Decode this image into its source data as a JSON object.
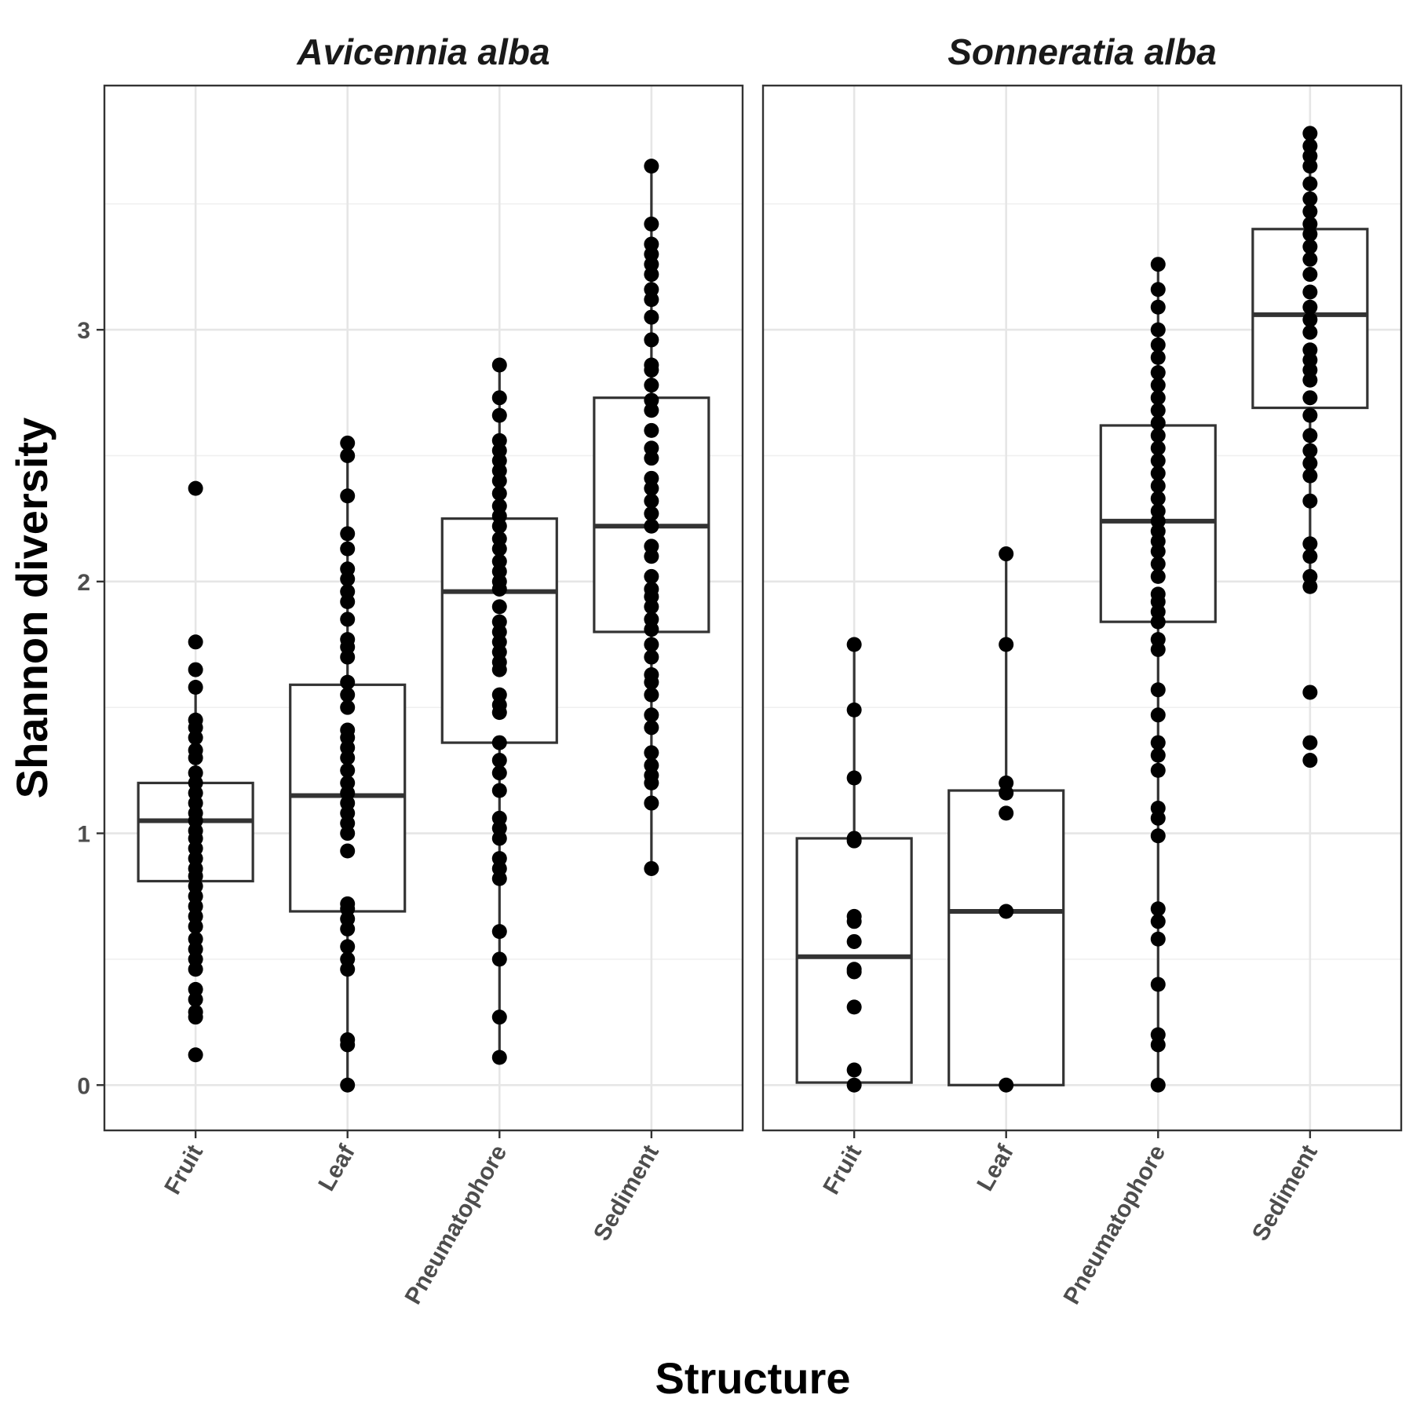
{
  "chart_data": {
    "type": "boxplot",
    "xlabel": "Structure",
    "ylabel": "Shannon diversity",
    "ylim": [
      -0.18,
      3.97
    ],
    "yticks": [
      0,
      1,
      2,
      3
    ],
    "grid": true,
    "theme": "bw",
    "colors": {
      "points": "#000000",
      "box": "#333333",
      "grid": "#e6e6e6"
    },
    "categories": [
      "Fruit",
      "Leaf",
      "Pneumatophore",
      "Sediment"
    ],
    "panels": [
      {
        "title": "Avicennia alba",
        "groups": [
          {
            "category": "Fruit",
            "box": {
              "q1": 0.81,
              "median": 1.05,
              "q3": 1.2,
              "lower": 0.46,
              "upper": 1.58
            },
            "points": [
              0.12,
              0.27,
              0.29,
              0.34,
              0.38,
              0.46,
              0.5,
              0.54,
              0.58,
              0.63,
              0.67,
              0.71,
              0.75,
              0.79,
              0.83,
              0.86,
              0.9,
              0.94,
              0.98,
              1.01,
              1.05,
              1.08,
              1.12,
              1.16,
              1.2,
              1.24,
              1.3,
              1.33,
              1.38,
              1.42,
              1.45,
              1.58,
              1.65,
              1.76,
              2.37
            ]
          },
          {
            "category": "Leaf",
            "box": {
              "q1": 0.69,
              "median": 1.15,
              "q3": 1.59,
              "lower": 0.0,
              "upper": 2.55
            },
            "points": [
              0.0,
              0.16,
              0.18,
              0.46,
              0.5,
              0.55,
              0.62,
              0.66,
              0.7,
              0.72,
              0.93,
              1.0,
              1.04,
              1.08,
              1.12,
              1.16,
              1.2,
              1.25,
              1.3,
              1.34,
              1.38,
              1.41,
              1.5,
              1.55,
              1.6,
              1.7,
              1.74,
              1.77,
              1.85,
              1.92,
              1.96,
              2.01,
              2.05,
              2.13,
              2.19,
              2.34,
              2.5,
              2.55
            ]
          },
          {
            "category": "Pneumatophore",
            "box": {
              "q1": 1.36,
              "median": 1.96,
              "q3": 2.25,
              "lower": 0.11,
              "upper": 2.86
            },
            "points": [
              0.11,
              0.27,
              0.5,
              0.61,
              0.82,
              0.86,
              0.9,
              0.98,
              1.02,
              1.06,
              1.17,
              1.24,
              1.29,
              1.36,
              1.48,
              1.51,
              1.55,
              1.65,
              1.68,
              1.72,
              1.76,
              1.8,
              1.84,
              1.9,
              1.97,
              2.0,
              2.04,
              2.08,
              2.13,
              2.17,
              2.22,
              2.26,
              2.3,
              2.35,
              2.4,
              2.44,
              2.48,
              2.52,
              2.56,
              2.66,
              2.73,
              2.86
            ]
          },
          {
            "category": "Sediment",
            "box": {
              "q1": 1.8,
              "median": 2.22,
              "q3": 2.73,
              "lower": 0.86,
              "upper": 3.65
            },
            "points": [
              0.86,
              1.12,
              1.2,
              1.23,
              1.27,
              1.32,
              1.42,
              1.47,
              1.55,
              1.6,
              1.63,
              1.7,
              1.75,
              1.81,
              1.85,
              1.9,
              1.94,
              1.97,
              2.02,
              2.1,
              2.14,
              2.22,
              2.27,
              2.32,
              2.37,
              2.41,
              2.49,
              2.53,
              2.6,
              2.68,
              2.72,
              2.78,
              2.84,
              2.86,
              2.96,
              3.05,
              3.12,
              3.16,
              3.22,
              3.26,
              3.3,
              3.34,
              3.42,
              3.65
            ]
          }
        ]
      },
      {
        "title": "Sonneratia alba",
        "groups": [
          {
            "category": "Fruit",
            "box": {
              "q1": 0.01,
              "median": 0.51,
              "q3": 0.98,
              "lower": 0.0,
              "upper": 1.75
            },
            "points": [
              0.0,
              0.06,
              0.31,
              0.45,
              0.46,
              0.57,
              0.65,
              0.67,
              0.97,
              0.98,
              1.22,
              1.49,
              1.75
            ]
          },
          {
            "category": "Leaf",
            "box": {
              "q1": 0.0,
              "median": 0.69,
              "q3": 1.17,
              "lower": 0.0,
              "upper": 2.11
            },
            "points": [
              0.0,
              0.69,
              1.08,
              1.16,
              1.2,
              1.75,
              2.11
            ]
          },
          {
            "category": "Pneumatophore",
            "box": {
              "q1": 1.84,
              "median": 2.24,
              "q3": 2.62,
              "lower": 0.0,
              "upper": 3.26
            },
            "points": [
              0.0,
              0.16,
              0.2,
              0.4,
              0.58,
              0.65,
              0.7,
              0.99,
              1.06,
              1.1,
              1.25,
              1.31,
              1.36,
              1.47,
              1.57,
              1.73,
              1.77,
              1.84,
              1.88,
              1.92,
              1.95,
              2.02,
              2.07,
              2.12,
              2.16,
              2.2,
              2.24,
              2.28,
              2.33,
              2.38,
              2.43,
              2.48,
              2.53,
              2.58,
              2.63,
              2.68,
              2.73,
              2.78,
              2.83,
              2.89,
              2.94,
              3.0,
              3.09,
              3.16,
              3.26
            ]
          },
          {
            "category": "Sediment",
            "box": {
              "q1": 2.69,
              "median": 3.06,
              "q3": 3.4,
              "lower": 1.98,
              "upper": 3.78
            },
            "points": [
              1.29,
              1.36,
              1.56,
              1.98,
              2.02,
              2.1,
              2.15,
              2.32,
              2.42,
              2.47,
              2.52,
              2.58,
              2.66,
              2.73,
              2.8,
              2.84,
              2.88,
              2.92,
              2.99,
              3.04,
              3.09,
              3.15,
              3.22,
              3.28,
              3.33,
              3.38,
              3.42,
              3.47,
              3.52,
              3.58,
              3.65,
              3.69,
              3.73,
              3.78
            ]
          }
        ]
      }
    ]
  }
}
